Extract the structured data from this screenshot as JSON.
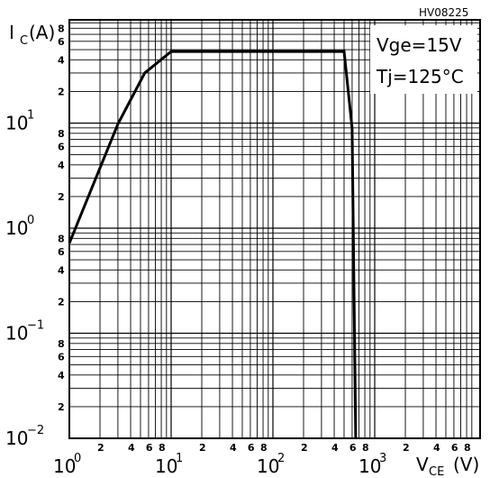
{
  "figure_code": "HV08225",
  "conditions": [
    "Vge=15V",
    "Tj=125°C"
  ],
  "y_axis": {
    "label_main": "I",
    "label_sub": "C",
    "label_unit": "(A)"
  },
  "x_axis": {
    "label_main": "V",
    "label_sub": "CE",
    "label_unit": "(V)"
  },
  "chart_data": {
    "type": "line",
    "xscale": "log",
    "yscale": "log",
    "xlim": [
      1,
      3000
    ],
    "ylim": [
      0.01,
      70
    ],
    "x_major_ticks": [
      {
        "value": 1,
        "base": "10",
        "exp": "0"
      },
      {
        "value": 10,
        "base": "10",
        "exp": "1"
      },
      {
        "value": 100,
        "base": "10",
        "exp": "2"
      },
      {
        "value": 1000,
        "base": "10",
        "exp": "3"
      }
    ],
    "y_major_ticks": [
      {
        "value": 0.01,
        "base": "10",
        "exp": "−2"
      },
      {
        "value": 0.1,
        "base": "10",
        "exp": "−1"
      },
      {
        "value": 1,
        "base": "10",
        "exp": "0"
      },
      {
        "value": 10,
        "base": "10",
        "exp": "1"
      }
    ],
    "x_minor_labels": [
      "2",
      "4",
      "6",
      "8"
    ],
    "y_minor_labels": [
      "2",
      "4",
      "6",
      "8"
    ],
    "series": [
      {
        "x": [
          1.0,
          3.0,
          5.5,
          10.0,
          500.0,
          600.0,
          650.0
        ],
        "y": [
          0.72,
          9.8,
          30.0,
          48.0,
          48.0,
          9.0,
          0.01
        ]
      }
    ],
    "grid": true
  }
}
